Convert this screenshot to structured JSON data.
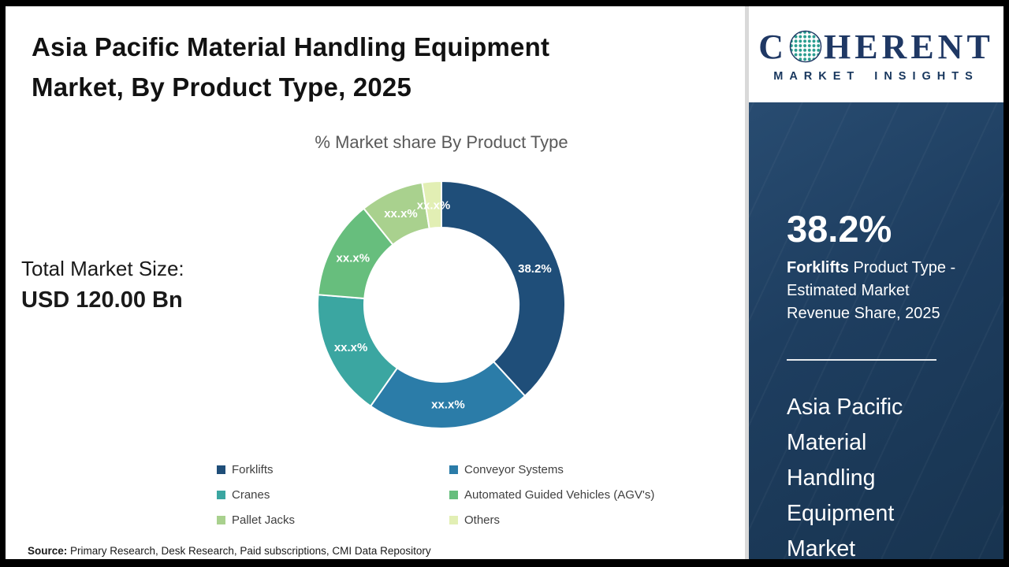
{
  "header": {
    "title_line1": "Asia Pacific Material Handling Equipment",
    "title_line2": "Market, By Product Type, 2025"
  },
  "chart_data": {
    "type": "pie",
    "subtype": "donut",
    "title": "% Market share By Product Type",
    "categories": [
      "Forklifts",
      "Conveyor Systems",
      "Cranes",
      "Automated Guided Vehicles (AGV's)",
      "Pallet Jacks",
      "Others"
    ],
    "values": [
      38.2,
      21.5,
      16.6,
      12.9,
      8.3,
      2.5
    ],
    "labels": [
      "38.2%",
      "xx.x%",
      "xx.x%",
      "xx.x%",
      "xx.x%",
      "xx.x%"
    ],
    "colors": [
      "#1F4E79",
      "#2B7CA8",
      "#3BA6A1",
      "#67BE7D",
      "#A9D18E",
      "#E2EFB4"
    ],
    "legend_position": "bottom"
  },
  "stats": {
    "total_label": "Total Market Size:",
    "total_value": "USD 120.00 Bn"
  },
  "source": {
    "label": "Source:",
    "text": " Primary Research, Desk Research, Paid subscriptions, CMI Data Repository"
  },
  "sidebar": {
    "logo": {
      "prefix": "C",
      "rest": "HERENT",
      "tagline": "MARKET INSIGHTS"
    },
    "stat_value": "38.2%",
    "stat_product": "Forklifts",
    "stat_rest": " Product Type - Estimated Market Revenue Share, 2025",
    "market_name": "Asia Pacific Material Handling Equipment Market"
  }
}
